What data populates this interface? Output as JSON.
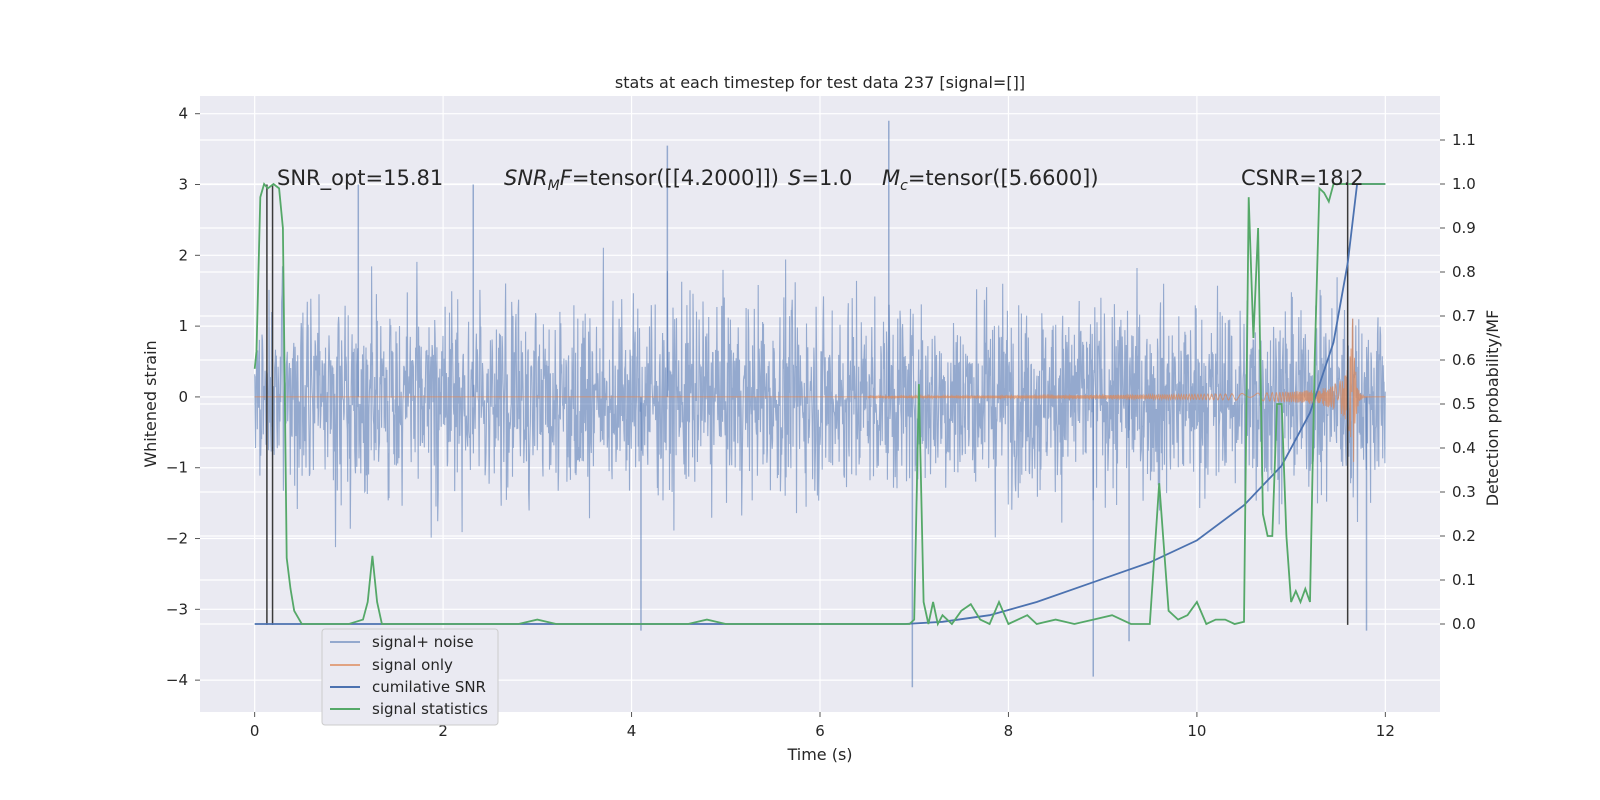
{
  "chart_data": {
    "type": "line",
    "title": "stats at each timestep for test data 237 [signal=[]]",
    "xlabel": "Time (s)",
    "ylabel_left": "Whitened strain",
    "ylabel_right": "Detection probability/MF",
    "xlim": [
      -0.58,
      12.58
    ],
    "ylim_left": [
      -4.45,
      4.25
    ],
    "ylim_right": [
      -0.2,
      1.2
    ],
    "xticks": [
      0,
      2,
      4,
      6,
      8,
      10,
      12
    ],
    "yticks_left": [
      -4,
      -3,
      -2,
      -1,
      0,
      1,
      2,
      3,
      4
    ],
    "yticks_right": [
      0.0,
      0.1,
      0.2,
      0.3,
      0.4,
      0.5,
      0.6,
      0.7,
      0.8,
      0.9,
      1.0,
      1.1
    ],
    "grid": true,
    "legend_position": "lower-left",
    "annotations": [
      {
        "id": "snr_opt",
        "text": "SNR_opt=15.81",
        "x": 0.2,
        "y": 3.2
      },
      {
        "id": "snr_mf",
        "text": "SNRₘF=tensor([[4.2000]])",
        "x": 2.6,
        "y": 3.2
      },
      {
        "id": "s_val",
        "text": "S=1.0",
        "x": 5.7,
        "y": 3.2
      },
      {
        "id": "mc",
        "text": "Mᴄ=tensor([5.6600])",
        "x": 6.6,
        "y": 3.2
      },
      {
        "id": "csnr",
        "text": "CSNR=18.2",
        "x": 10.4,
        "y": 3.2
      }
    ],
    "vlines": [
      {
        "x": 0.13,
        "y_from": -3.22,
        "y_to": 3.0
      },
      {
        "x": 0.19,
        "y_from": -3.22,
        "y_to": 3.0
      },
      {
        "x": 11.6,
        "y_from": -3.22,
        "y_to": 3.2
      }
    ],
    "series": [
      {
        "name": "signal+ noise",
        "axis": "left",
        "color": "#4c72b0",
        "opacity": 0.55,
        "envelope": {
          "x_range": [
            0,
            12
          ],
          "core": [
            -1.3,
            1.3
          ],
          "peaks_max": [
            3.0,
            3.55,
            3.9,
            3.35
          ],
          "peaks_min": [
            -3.3,
            -4.1,
            -3.95,
            -3.45
          ],
          "typical_range": [
            -2.9,
            2.6
          ]
        }
      },
      {
        "name": "signal only",
        "axis": "left",
        "color": "#dd8452",
        "chirp": {
          "start": 6.5,
          "merger": 11.65,
          "end": 12.0,
          "peak_amplitude": 1.55
        }
      },
      {
        "name": "cumilative SNR",
        "axis": "right",
        "color": "#4c72b0",
        "x": [
          0,
          6.9,
          7.3,
          7.8,
          8.3,
          8.9,
          9.5,
          10.0,
          10.5,
          10.9,
          11.2,
          11.45,
          11.6,
          11.7,
          12.0
        ],
        "y": [
          0.0,
          0.0,
          0.005,
          0.02,
          0.05,
          0.095,
          0.14,
          0.19,
          0.27,
          0.36,
          0.48,
          0.64,
          0.82,
          1.0,
          1.0
        ]
      },
      {
        "name": "signal statistics",
        "axis": "right",
        "color": "#55a868",
        "x": [
          0.0,
          0.02,
          0.06,
          0.1,
          0.14,
          0.2,
          0.26,
          0.3,
          0.34,
          0.38,
          0.42,
          0.5,
          0.7,
          1.0,
          1.15,
          1.2,
          1.25,
          1.3,
          1.35,
          1.5,
          2.0,
          2.8,
          3.0,
          3.2,
          4.0,
          4.6,
          4.8,
          5.0,
          6.0,
          6.8,
          6.95,
          7.0,
          7.05,
          7.1,
          7.15,
          7.2,
          7.25,
          7.3,
          7.4,
          7.5,
          7.6,
          7.7,
          7.8,
          7.9,
          8.0,
          8.1,
          8.2,
          8.3,
          8.5,
          8.7,
          8.9,
          9.1,
          9.3,
          9.5,
          9.6,
          9.7,
          9.8,
          9.9,
          10.0,
          10.1,
          10.2,
          10.3,
          10.4,
          10.5,
          10.55,
          10.6,
          10.65,
          10.7,
          10.75,
          10.8,
          10.85,
          10.9,
          10.95,
          11.0,
          11.05,
          11.1,
          11.15,
          11.2,
          11.25,
          11.3,
          11.35,
          11.4,
          11.45,
          11.5,
          11.55,
          11.6,
          11.65,
          11.7,
          12.0
        ],
        "y": [
          0.58,
          0.62,
          0.97,
          1.0,
          0.99,
          1.0,
          0.99,
          0.9,
          0.15,
          0.08,
          0.03,
          0.0,
          0.0,
          0.0,
          0.01,
          0.05,
          0.155,
          0.05,
          0.0,
          0.0,
          0.0,
          0.0,
          0.01,
          0.0,
          0.0,
          0.0,
          0.01,
          0.0,
          0.0,
          0.0,
          0.0,
          0.01,
          0.545,
          0.05,
          0.0,
          0.05,
          0.0,
          0.02,
          0.0,
          0.03,
          0.045,
          0.01,
          0.0,
          0.05,
          0.0,
          0.01,
          0.02,
          0.0,
          0.01,
          0.0,
          0.01,
          0.02,
          0.0,
          0.0,
          0.32,
          0.03,
          0.01,
          0.02,
          0.05,
          0.0,
          0.01,
          0.01,
          0.0,
          0.005,
          0.97,
          0.65,
          0.9,
          0.25,
          0.2,
          0.2,
          0.5,
          0.5,
          0.2,
          0.05,
          0.075,
          0.05,
          0.08,
          0.05,
          0.6,
          0.99,
          0.98,
          0.96,
          1.0,
          1.0,
          1.0,
          1.0,
          1.0,
          1.0,
          1.0
        ]
      }
    ]
  },
  "colors": {
    "plot_background": "#eaeaf2",
    "grid": "#ffffff",
    "noise": "#4c72b0",
    "signal": "#dd8452",
    "csnr": "#4c72b0",
    "statistics": "#55a868",
    "vline": "#3a3a3a",
    "legend_background": "#eaeaf2",
    "legend_border": "#cccccc"
  }
}
